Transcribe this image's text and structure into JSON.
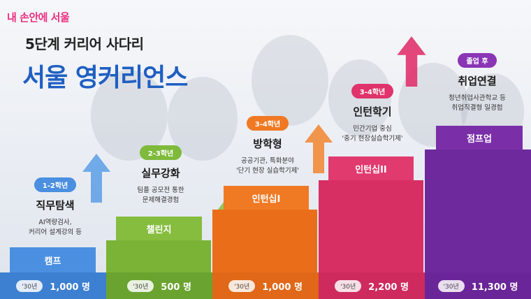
{
  "brand": "내 손안에 서울",
  "title_sub": "5단계 커리어 사다리",
  "title_main": "서울 영커리언스",
  "stages": [
    {
      "grade": "1-2학년",
      "title": "직무탐색",
      "desc1": "AI역량검사,",
      "desc2": "커리어 설계강의 등",
      "block": "캠프",
      "year": "'30년",
      "count": "1,000 명",
      "badge_color": "#4a8fe0",
      "block_color": "#4a8fe0",
      "footer_color": "#3d7fd0"
    },
    {
      "grade": "2-3학년",
      "title": "실무강화",
      "desc1": "팀플 공모전 통한",
      "desc2": "문제해결경험",
      "block": "챌린지",
      "year": "'30년",
      "count": "500 명",
      "badge_color": "#7fba3c",
      "block_color": "#86bd3f",
      "footer_color": "#6aa32f"
    },
    {
      "grade": "3-4학년",
      "title": "방학형",
      "desc1": "공공기관, 특화분야",
      "desc2": "'단기 현장 실습학기제'",
      "block": "인턴십I",
      "year": "'30년",
      "count": "1,000 명",
      "badge_color": "#f07a24",
      "block_color": "#f07a24",
      "footer_color": "#e06818"
    },
    {
      "grade": "3-4학년",
      "title": "인턴학기",
      "desc1": "민간기업 중심",
      "desc2": "'중기 현장실습학기제'",
      "block": "인턴십II",
      "year": "'30년",
      "count": "2,200 명",
      "badge_color": "#e0336c",
      "block_color": "#e13a6e",
      "footer_color": "#cf2a5e"
    },
    {
      "grade": "졸업 후",
      "title": "취업연결",
      "desc1": "청년취업사관학교 등",
      "desc2": "취업직결형 일경험",
      "block": "점프업",
      "year": "'30년",
      "count": "11,300 명",
      "badge_color": "#8a35b5",
      "block_color": "#7a2fa8",
      "footer_color": "#6a2598"
    }
  ]
}
